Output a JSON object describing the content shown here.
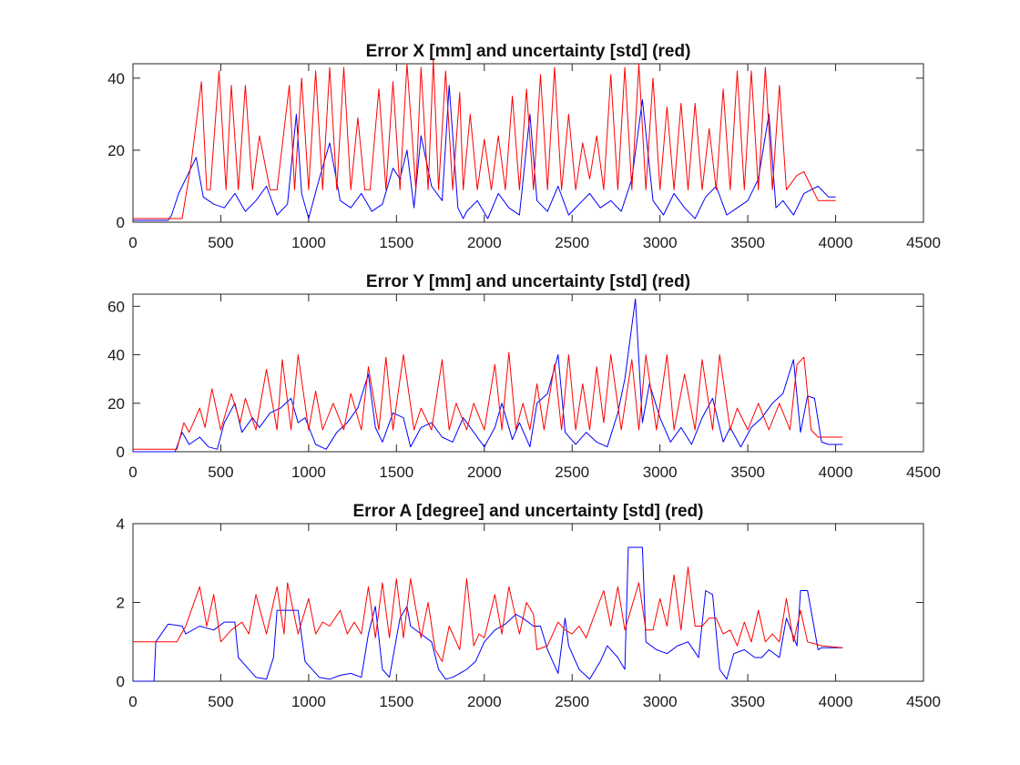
{
  "chart_data": [
    {
      "type": "line",
      "title": "Error X [mm] and uncertainty [std] (red)",
      "xlim": [
        0,
        4500
      ],
      "ylim": [
        0,
        44
      ],
      "xticks": [
        0,
        500,
        1000,
        1500,
        2000,
        2500,
        3000,
        3500,
        4000,
        4500
      ],
      "yticks": [
        0,
        20,
        40
      ],
      "grid": false,
      "series": [
        {
          "color": "#0000ff",
          "x": [
            0,
            200,
            220,
            260,
            300,
            360,
            400,
            460,
            520,
            580,
            640,
            700,
            760,
            820,
            880,
            930,
            960,
            1000,
            1060,
            1120,
            1180,
            1240,
            1300,
            1360,
            1420,
            1480,
            1520,
            1560,
            1600,
            1640,
            1700,
            1760,
            1800,
            1850,
            1880,
            1900,
            1960,
            2020,
            2080,
            2140,
            2200,
            2260,
            2300,
            2360,
            2420,
            2480,
            2540,
            2600,
            2660,
            2720,
            2780,
            2840,
            2900,
            2960,
            3020,
            3080,
            3140,
            3200,
            3260,
            3320,
            3380,
            3440,
            3500,
            3560,
            3620,
            3660,
            3700,
            3760,
            3820,
            3860,
            3900,
            3960,
            4000
          ],
          "y": [
            0.5,
            0.5,
            2,
            8,
            12,
            18,
            7,
            5,
            4,
            8,
            3,
            6,
            10,
            2,
            5,
            30,
            8,
            1,
            12,
            22,
            6,
            4,
            8,
            3,
            5,
            15,
            12,
            20,
            4,
            24,
            10,
            6,
            38,
            4,
            1,
            3,
            6,
            1,
            8,
            4,
            2,
            30,
            6,
            3,
            10,
            2,
            5,
            8,
            4,
            6,
            3,
            12,
            34,
            6,
            2,
            8,
            4,
            1,
            7,
            10,
            2,
            4,
            6,
            12,
            30,
            4,
            6,
            2,
            8,
            9,
            10,
            7,
            7
          ]
        },
        {
          "color": "#ff0000",
          "x": [
            0,
            280,
            330,
            390,
            420,
            440,
            490,
            530,
            560,
            600,
            640,
            680,
            720,
            780,
            820,
            890,
            920,
            960,
            1000,
            1040,
            1080,
            1120,
            1160,
            1200,
            1240,
            1280,
            1320,
            1350,
            1400,
            1440,
            1480,
            1520,
            1560,
            1610,
            1640,
            1680,
            1710,
            1740,
            1780,
            1820,
            1860,
            1880,
            1920,
            1960,
            2000,
            2040,
            2080,
            2120,
            2160,
            2200,
            2240,
            2280,
            2320,
            2360,
            2400,
            2440,
            2480,
            2520,
            2560,
            2600,
            2640,
            2680,
            2720,
            2760,
            2800,
            2840,
            2880,
            2920,
            2960,
            3000,
            3040,
            3080,
            3120,
            3160,
            3200,
            3240,
            3280,
            3320,
            3360,
            3400,
            3440,
            3480,
            3520,
            3560,
            3600,
            3640,
            3680,
            3720,
            3780,
            3820,
            3880,
            3900,
            4000
          ],
          "y": [
            1,
            1,
            16,
            39,
            9,
            9,
            42,
            9,
            38,
            9,
            38,
            9,
            24,
            9,
            9,
            38,
            9,
            40,
            9,
            42,
            9,
            43,
            9,
            43,
            9,
            29,
            9,
            9,
            37,
            9,
            39,
            9,
            44,
            9,
            43,
            9,
            45,
            9,
            42,
            9,
            36,
            9,
            30,
            9,
            23,
            9,
            24,
            9,
            35,
            9,
            37,
            9,
            41,
            9,
            43,
            9,
            30,
            9,
            22,
            12,
            24,
            9,
            41,
            9,
            43,
            9,
            44,
            9,
            40,
            9,
            32,
            9,
            33,
            9,
            33,
            9,
            26,
            9,
            37,
            9,
            42,
            9,
            42,
            9,
            43,
            9,
            38,
            9,
            13,
            14,
            8,
            6,
            6
          ]
        }
      ]
    },
    {
      "type": "line",
      "title": "Error Y [mm] and uncertainty [std] (red)",
      "xlim": [
        0,
        4500
      ],
      "ylim": [
        0,
        65
      ],
      "xticks": [
        0,
        500,
        1000,
        1500,
        2000,
        2500,
        3000,
        3500,
        4000,
        4500
      ],
      "yticks": [
        0,
        20,
        40,
        60
      ],
      "grid": false,
      "series": [
        {
          "color": "#0000ff",
          "x": [
            0,
            240,
            280,
            320,
            380,
            430,
            480,
            520,
            580,
            620,
            680,
            720,
            780,
            840,
            900,
            940,
            980,
            1040,
            1100,
            1160,
            1220,
            1280,
            1340,
            1380,
            1420,
            1480,
            1540,
            1580,
            1640,
            1700,
            1760,
            1820,
            1880,
            1940,
            2000,
            2060,
            2100,
            2160,
            2200,
            2260,
            2300,
            2360,
            2420,
            2460,
            2520,
            2580,
            2640,
            2700,
            2760,
            2800,
            2860,
            2900,
            2940,
            3000,
            3060,
            3120,
            3180,
            3240,
            3300,
            3360,
            3400,
            3460,
            3520,
            3580,
            3640,
            3700,
            3760,
            3800,
            3840,
            3880,
            3920,
            3960,
            4040
          ],
          "y": [
            0,
            0,
            8,
            3,
            6,
            2,
            1,
            12,
            20,
            8,
            14,
            10,
            16,
            18,
            22,
            12,
            14,
            3,
            1,
            8,
            12,
            18,
            32,
            10,
            4,
            16,
            14,
            2,
            10,
            12,
            6,
            4,
            14,
            8,
            2,
            10,
            20,
            5,
            12,
            2,
            20,
            24,
            40,
            8,
            3,
            8,
            4,
            2,
            16,
            30,
            63,
            12,
            28,
            14,
            4,
            10,
            3,
            14,
            22,
            4,
            10,
            2,
            10,
            14,
            20,
            24,
            38,
            8,
            23,
            22,
            4,
            3,
            3
          ]
        },
        {
          "color": "#ff0000",
          "x": [
            0,
            250,
            290,
            320,
            380,
            410,
            450,
            500,
            560,
            610,
            640,
            700,
            760,
            820,
            850,
            900,
            940,
            1000,
            1040,
            1080,
            1140,
            1200,
            1240,
            1300,
            1340,
            1400,
            1440,
            1480,
            1540,
            1600,
            1640,
            1700,
            1760,
            1800,
            1840,
            1900,
            1940,
            2000,
            2060,
            2100,
            2140,
            2180,
            2220,
            2260,
            2300,
            2340,
            2400,
            2440,
            2480,
            2520,
            2560,
            2600,
            2640,
            2680,
            2720,
            2780,
            2840,
            2880,
            2920,
            2980,
            3040,
            3080,
            3140,
            3200,
            3240,
            3300,
            3340,
            3400,
            3440,
            3500,
            3560,
            3620,
            3680,
            3740,
            3780,
            3820,
            3860,
            3900,
            4040
          ],
          "y": [
            1,
            1,
            12,
            8,
            18,
            10,
            26,
            9,
            24,
            12,
            22,
            9,
            34,
            9,
            38,
            9,
            40,
            9,
            25,
            9,
            20,
            9,
            24,
            9,
            35,
            9,
            39,
            9,
            40,
            9,
            18,
            9,
            38,
            9,
            20,
            9,
            20,
            9,
            36,
            9,
            41,
            9,
            20,
            9,
            28,
            9,
            36,
            9,
            40,
            9,
            28,
            9,
            35,
            12,
            40,
            9,
            38,
            9,
            40,
            9,
            40,
            9,
            32,
            9,
            38,
            9,
            40,
            9,
            18,
            9,
            20,
            9,
            20,
            9,
            36,
            39,
            9,
            6,
            6
          ]
        }
      ]
    },
    {
      "type": "line",
      "title": "Error A [degree] and uncertainty [std] (red)",
      "xlim": [
        0,
        4500
      ],
      "ylim": [
        0,
        4
      ],
      "xticks": [
        0,
        500,
        1000,
        1500,
        2000,
        2500,
        3000,
        3500,
        4000,
        4500
      ],
      "yticks": [
        0,
        2,
        4
      ],
      "grid": false,
      "series": [
        {
          "color": "#0000ff",
          "x": [
            0,
            120,
            130,
            200,
            280,
            300,
            380,
            460,
            520,
            580,
            600,
            640,
            700,
            760,
            800,
            820,
            900,
            940,
            980,
            1000,
            1060,
            1120,
            1180,
            1240,
            1300,
            1340,
            1380,
            1420,
            1460,
            1520,
            1560,
            1580,
            1640,
            1700,
            1740,
            1780,
            1820,
            1860,
            1900,
            1950,
            2000,
            2060,
            2120,
            2180,
            2220,
            2280,
            2320,
            2360,
            2420,
            2460,
            2480,
            2540,
            2600,
            2660,
            2700,
            2760,
            2800,
            2820,
            2900,
            2920,
            2980,
            3040,
            3100,
            3160,
            3220,
            3260,
            3300,
            3340,
            3380,
            3420,
            3480,
            3540,
            3580,
            3620,
            3680,
            3720,
            3780,
            3800,
            3820,
            3840,
            3900,
            3920,
            4040
          ],
          "y": [
            0,
            0,
            1.0,
            1.45,
            1.4,
            1.2,
            1.4,
            1.3,
            1.5,
            1.5,
            0.6,
            0.4,
            0.1,
            0.05,
            0.6,
            1.8,
            1.8,
            1.8,
            0.5,
            0.4,
            0.1,
            0.05,
            0.15,
            0.2,
            0.1,
            1.2,
            1.9,
            0.3,
            0.1,
            1.6,
            1.9,
            1.4,
            1.2,
            1.0,
            0.3,
            0.05,
            0.1,
            0.2,
            0.3,
            0.5,
            1.0,
            1.3,
            1.45,
            1.7,
            1.6,
            1.4,
            1.4,
            0.8,
            0.2,
            1.6,
            0.9,
            0.3,
            0.05,
            0.5,
            0.9,
            0.6,
            0.3,
            3.4,
            3.4,
            1.0,
            0.8,
            0.7,
            0.9,
            1.0,
            0.6,
            2.3,
            2.2,
            0.3,
            0.05,
            0.7,
            0.8,
            0.6,
            0.6,
            0.8,
            0.6,
            1.6,
            0.9,
            2.3,
            2.3,
            2.3,
            0.8,
            0.85,
            0.85
          ]
        },
        {
          "color": "#ff0000",
          "x": [
            0,
            250,
            300,
            340,
            380,
            420,
            460,
            500,
            560,
            620,
            660,
            700,
            760,
            820,
            860,
            880,
            940,
            1000,
            1040,
            1080,
            1120,
            1180,
            1220,
            1260,
            1300,
            1340,
            1380,
            1420,
            1460,
            1500,
            1540,
            1580,
            1640,
            1680,
            1720,
            1760,
            1800,
            1860,
            1900,
            1940,
            1970,
            2000,
            2060,
            2100,
            2140,
            2200,
            2240,
            2280,
            2300,
            2360,
            2420,
            2460,
            2500,
            2540,
            2580,
            2620,
            2680,
            2720,
            2760,
            2800,
            2880,
            2920,
            2960,
            3000,
            3040,
            3080,
            3120,
            3160,
            3200,
            3240,
            3280,
            3320,
            3360,
            3400,
            3440,
            3480,
            3520,
            3560,
            3600,
            3640,
            3680,
            3720,
            3760,
            3800,
            3840,
            3880,
            3920,
            4040
          ],
          "y": [
            1.0,
            1.0,
            1.4,
            1.9,
            2.4,
            1.4,
            2.2,
            1.0,
            1.3,
            1.5,
            1.2,
            2.2,
            1.2,
            2.4,
            1.2,
            2.5,
            1.2,
            2.1,
            1.2,
            1.5,
            1.4,
            1.8,
            1.2,
            1.5,
            1.2,
            2.4,
            1.1,
            2.5,
            1.1,
            2.6,
            1.1,
            2.6,
            1.1,
            2.0,
            0.8,
            0.5,
            1.4,
            0.8,
            2.6,
            0.9,
            1.2,
            1.1,
            2.2,
            1.2,
            2.4,
            1.2,
            2.0,
            1.7,
            0.8,
            0.9,
            1.5,
            1.3,
            1.2,
            1.4,
            1.1,
            1.6,
            2.3,
            1.4,
            2.4,
            1.3,
            2.5,
            1.3,
            1.3,
            2.1,
            1.4,
            2.7,
            1.3,
            2.9,
            1.4,
            1.4,
            1.6,
            1.6,
            1.2,
            1.3,
            0.9,
            1.5,
            1.0,
            1.8,
            1.0,
            1.2,
            1.0,
            2.1,
            1.0,
            1.8,
            1.0,
            0.95,
            0.9,
            0.85
          ]
        }
      ]
    }
  ]
}
